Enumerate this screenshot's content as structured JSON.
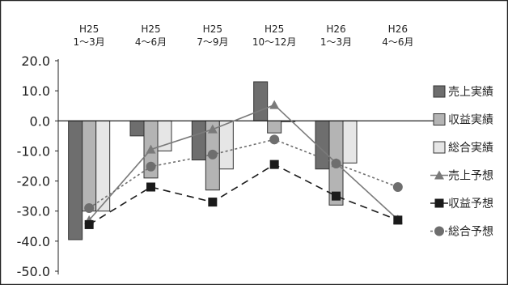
{
  "chart_data": {
    "type": "bar",
    "categories": [
      [
        "H25",
        "1〜3月"
      ],
      [
        "H25",
        "4〜6月"
      ],
      [
        "H25",
        "7〜9月"
      ],
      [
        "H25",
        "10〜12月"
      ],
      [
        "H26",
        "1〜3月"
      ],
      [
        "H26",
        "4〜6月"
      ]
    ],
    "ylim": [
      -50,
      20
    ],
    "yticks": [
      "20.0",
      "10.0",
      "0.0",
      "-10.0",
      "-20.0",
      "-30.0",
      "-40.0",
      "-50.0"
    ],
    "ytick_values": [
      20,
      10,
      0,
      -10,
      -20,
      -30,
      -40,
      -50
    ],
    "grid": false,
    "legend_position": "right",
    "bar_series": [
      {
        "name": "売上実績",
        "color": "#6e6e6e",
        "values": [
          -39.5,
          -5,
          -13,
          13,
          -16,
          null
        ]
      },
      {
        "name": "収益実績",
        "color": "#b4b4b4",
        "values": [
          -30,
          -19,
          -23,
          -4,
          -28,
          null
        ]
      },
      {
        "name": "総合実績",
        "color": "#e6e6e6",
        "values": [
          -30,
          -10,
          -16,
          0,
          -14,
          null
        ]
      }
    ],
    "line_series": [
      {
        "name": "売上予想",
        "color": "#7a7a7a",
        "marker": "triangle",
        "dash": "solid",
        "values": [
          -33,
          -9.5,
          -2.8,
          5.3,
          -14,
          -32.8
        ]
      },
      {
        "name": "収益予想",
        "color": "#1a1a1a",
        "marker": "square",
        "dash": "longdash",
        "values": [
          -34.5,
          -22,
          -27,
          -14.5,
          -25,
          -33
        ]
      },
      {
        "name": "総合予想",
        "color": "#6e6e6e",
        "marker": "circle",
        "dash": "dotted",
        "values": [
          -29,
          -15.2,
          -11.2,
          -6.2,
          -14.2,
          -22
        ]
      }
    ]
  }
}
